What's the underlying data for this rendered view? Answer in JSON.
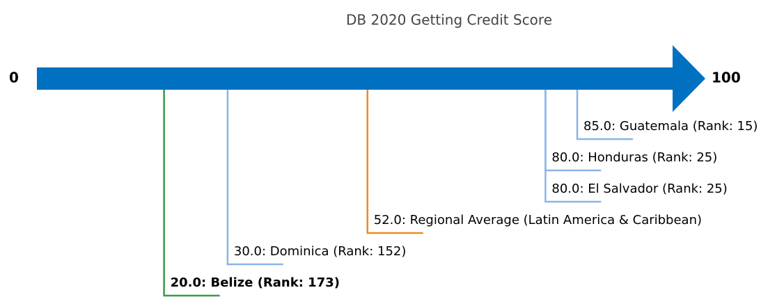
{
  "chart_data": {
    "type": "number-line",
    "title": "DB 2020 Getting Credit Score",
    "xlim": [
      0,
      100
    ],
    "xticks": [
      0,
      100
    ],
    "arrow_color": "#0070c0",
    "values": [
      85,
      80,
      80,
      52,
      30,
      20
    ],
    "value_labels": [
      "85.0: Guatemala (Rank: 15)",
      "80.0: Honduras (Rank: 25)",
      "80.0: El Salvador (Rank: 25)",
      "52.0: Regional Average (Latin America & Caribbean)",
      "30.0: Dominica (Rank: 152)",
      "20.0: Belize (Rank: 173)"
    ],
    "colors": [
      "#8ab4e8",
      "#8ab4e8",
      "#8ab4e8",
      "#f08a24",
      "#8ab4e8",
      "#3a9a4a"
    ],
    "bold": [
      false,
      false,
      false,
      false,
      false,
      true
    ]
  }
}
